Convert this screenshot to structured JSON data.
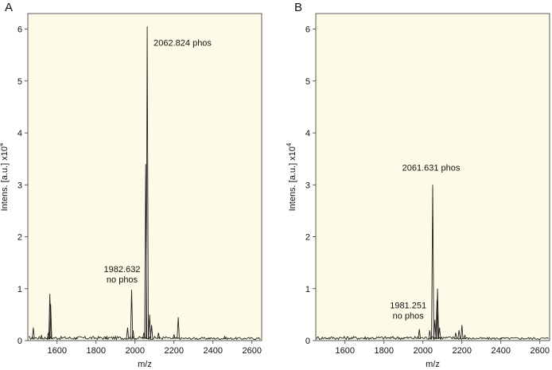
{
  "chart_data": [
    {
      "type": "line",
      "panel_label": "A",
      "xlabel": "m/z",
      "ylabel": "Intens. [a.u.] x10",
      "ylabel_exponent": "4",
      "xlim": [
        1450,
        2650
      ],
      "ylim": [
        0,
        6.3
      ],
      "x_ticks": [
        1600,
        1800,
        2000,
        2200,
        2400,
        2600
      ],
      "y_ticks": [
        0,
        1,
        2,
        3,
        4,
        5,
        6
      ],
      "background_color": "#fdfbe8",
      "line_color": "#222222",
      "peaks": [
        {
          "x": 1478,
          "y": 0.25
        },
        {
          "x": 1520,
          "y": 0.1
        },
        {
          "x": 1555,
          "y": 0.15
        },
        {
          "x": 1563,
          "y": 0.9
        },
        {
          "x": 1567,
          "y": 0.7
        },
        {
          "x": 1700,
          "y": 0.06
        },
        {
          "x": 1850,
          "y": 0.06
        },
        {
          "x": 1962,
          "y": 0.25
        },
        {
          "x": 1982.632,
          "y": 0.98
        },
        {
          "x": 1990,
          "y": 0.2
        },
        {
          "x": 2045,
          "y": 0.15
        },
        {
          "x": 2055,
          "y": 3.4
        },
        {
          "x": 2062.824,
          "y": 6.05
        },
        {
          "x": 2075,
          "y": 0.5
        },
        {
          "x": 2085,
          "y": 0.3
        },
        {
          "x": 2120,
          "y": 0.15
        },
        {
          "x": 2200,
          "y": 0.12
        },
        {
          "x": 2222,
          "y": 0.45
        },
        {
          "x": 2380,
          "y": 0.05
        },
        {
          "x": 2460,
          "y": 0.08
        }
      ],
      "annotations": [
        {
          "lines": [
            "2062.824 phos"
          ],
          "x": 2062.824,
          "y": 6.05
        },
        {
          "lines": [
            "1982.632",
            "no phos"
          ],
          "x": 1982.632,
          "y": 0.98
        }
      ]
    },
    {
      "type": "line",
      "panel_label": "B",
      "xlabel": "m/z",
      "ylabel": "Intens. [a.u.] x10",
      "ylabel_exponent": "4",
      "xlim": [
        1450,
        2650
      ],
      "ylim": [
        0,
        6.3
      ],
      "x_ticks": [
        1600,
        1800,
        2000,
        2200,
        2400,
        2600
      ],
      "y_ticks": [
        0,
        1,
        2,
        3,
        4,
        5,
        6
      ],
      "background_color": "#fdfbe8",
      "line_color": "#222222",
      "peaks": [
        {
          "x": 1700,
          "y": 0.04
        },
        {
          "x": 1900,
          "y": 0.05
        },
        {
          "x": 1981.251,
          "y": 0.22
        },
        {
          "x": 2035,
          "y": 0.2
        },
        {
          "x": 2050,
          "y": 3.0
        },
        {
          "x": 2061.631,
          "y": 0.4
        },
        {
          "x": 2072,
          "y": 0.78
        },
        {
          "x": 2075,
          "y": 1.0
        },
        {
          "x": 2085,
          "y": 0.25
        },
        {
          "x": 2168,
          "y": 0.15
        },
        {
          "x": 2185,
          "y": 0.2
        },
        {
          "x": 2200,
          "y": 0.3
        },
        {
          "x": 2215,
          "y": 0.1
        },
        {
          "x": 2400,
          "y": 0.05
        }
      ],
      "annotations": [
        {
          "lines": [
            "2061.631 phos"
          ],
          "x": 2050,
          "y": 3.0
        },
        {
          "lines": [
            "1981.251",
            "no phos"
          ],
          "x": 1981.251,
          "y": 0.22
        }
      ]
    }
  ]
}
